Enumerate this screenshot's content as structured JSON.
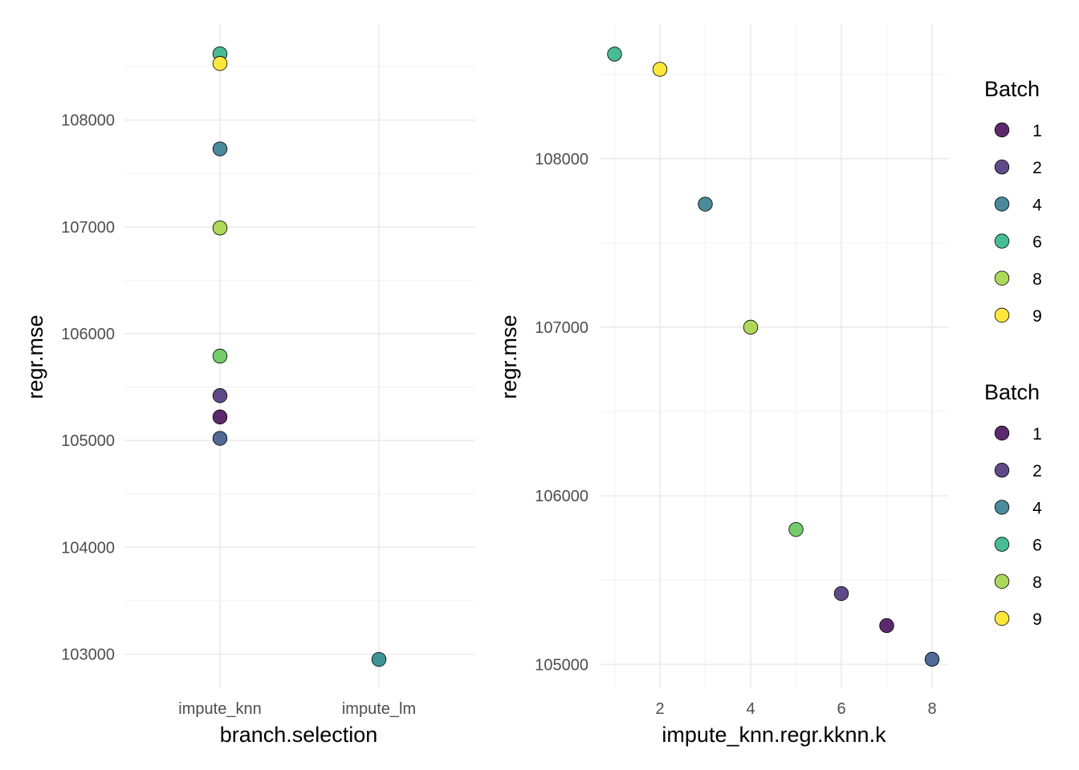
{
  "chart_data": [
    {
      "type": "scatter",
      "xlabel": "branch.selection",
      "ylabel": "regr.mse",
      "x_type": "categorical",
      "categories": [
        "impute_knn",
        "impute_lm"
      ],
      "ylim": [
        102750,
        108650
      ],
      "y_ticks": [
        103000,
        104000,
        105000,
        106000,
        107000,
        108000
      ],
      "y_tick_labels": [
        "103000",
        "104000",
        "105000",
        "106000",
        "107000",
        "108000"
      ],
      "grid": true,
      "points": [
        {
          "x": "impute_knn",
          "y": 108620,
          "batch": 6
        },
        {
          "x": "impute_knn",
          "y": 108530,
          "batch": 9
        },
        {
          "x": "impute_knn",
          "y": 107730,
          "batch": 4
        },
        {
          "x": "impute_knn",
          "y": 106990,
          "batch": 8
        },
        {
          "x": "impute_knn",
          "y": 105790,
          "batch": 7
        },
        {
          "x": "impute_knn",
          "y": 105420,
          "batch": 2
        },
        {
          "x": "impute_knn",
          "y": 105220,
          "batch": 1
        },
        {
          "x": "impute_knn",
          "y": 105020,
          "batch": 3
        },
        {
          "x": "impute_lm",
          "y": 102950,
          "batch": 5
        }
      ]
    },
    {
      "type": "scatter",
      "xlabel": "impute_knn.regr.kknn.k",
      "ylabel": "regr.mse",
      "xlim": [
        0.8,
        8.4
      ],
      "ylim": [
        104950,
        108700
      ],
      "x_ticks": [
        2,
        4,
        6,
        8
      ],
      "x_tick_labels": [
        "2",
        "4",
        "6",
        "8"
      ],
      "y_ticks": [
        105000,
        106000,
        107000,
        108000
      ],
      "y_tick_labels": [
        "105000",
        "106000",
        "107000",
        "108000"
      ],
      "grid": true,
      "points": [
        {
          "x": 1,
          "y": 108620,
          "batch": 6
        },
        {
          "x": 2,
          "y": 108530,
          "batch": 9
        },
        {
          "x": 3,
          "y": 107730,
          "batch": 4
        },
        {
          "x": 4,
          "y": 107000,
          "batch": 8
        },
        {
          "x": 5,
          "y": 105800,
          "batch": 7
        },
        {
          "x": 6,
          "y": 105420,
          "batch": 2
        },
        {
          "x": 7,
          "y": 105230,
          "batch": 1
        },
        {
          "x": 8,
          "y": 105030,
          "batch": 3
        }
      ]
    }
  ],
  "legends": [
    {
      "title": "Batch",
      "items": [
        {
          "label": "1",
          "color": "#5c2a6c"
        },
        {
          "label": "2",
          "color": "#5f4a89"
        },
        {
          "label": "4",
          "color": "#4a8a9c"
        },
        {
          "label": "6",
          "color": "#48bc93"
        },
        {
          "label": "8",
          "color": "#aed85a"
        },
        {
          "label": "9",
          "color": "#fde73d"
        }
      ]
    },
    {
      "title": "Batch",
      "items": [
        {
          "label": "1",
          "color": "#5c2a6c"
        },
        {
          "label": "2",
          "color": "#5f4a89"
        },
        {
          "label": "4",
          "color": "#4a8a9c"
        },
        {
          "label": "6",
          "color": "#48bc93"
        },
        {
          "label": "8",
          "color": "#aed85a"
        },
        {
          "label": "9",
          "color": "#fde73d"
        }
      ]
    }
  ],
  "batch_colors": {
    "1": "#5c2a6c",
    "2": "#5f4a89",
    "3": "#4f6a97",
    "4": "#4a8a9c",
    "5": "#3c9497",
    "6": "#48bc93",
    "7": "#74cd6a",
    "8": "#aed85a",
    "9": "#fde73d"
  }
}
